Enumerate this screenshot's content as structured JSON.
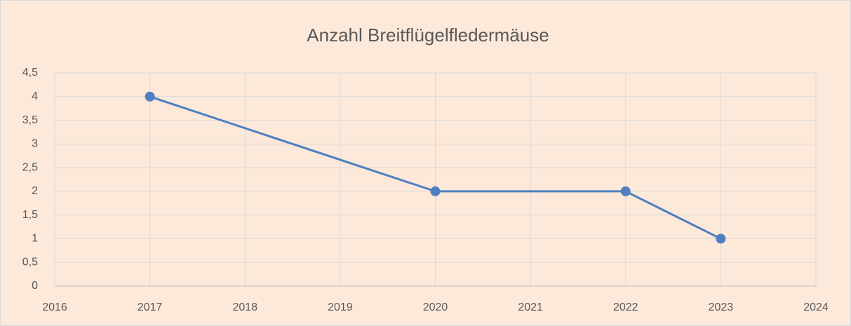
{
  "chart_data": {
    "type": "line",
    "title": "Anzahl Breitflügelfledermäuse",
    "x": [
      2017,
      2020,
      2022,
      2023
    ],
    "values": [
      4,
      2,
      2,
      1
    ],
    "color": "#4f7fc1",
    "xlim": [
      2016,
      2024
    ],
    "xticks": [
      2016,
      2017,
      2018,
      2019,
      2020,
      2021,
      2022,
      2023,
      2024
    ],
    "ylim": [
      0,
      4.5
    ],
    "yticks": [
      0,
      {
        "value": 0.5,
        "label": "0,5"
      },
      1,
      {
        "value": 1.5,
        "label": "1,5"
      },
      2,
      {
        "value": 2.5,
        "label": "2,5"
      },
      3,
      {
        "value": 3.5,
        "label": "3,5"
      },
      4,
      {
        "value": 4.5,
        "label": "4,5"
      }
    ],
    "grid": true
  }
}
